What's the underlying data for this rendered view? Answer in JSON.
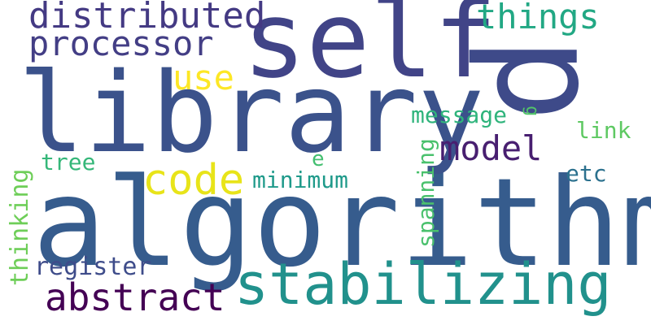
{
  "word_cloud": {
    "words": [
      {
        "text": "algorithm",
        "color": "#365C8D"
      },
      {
        "text": "library",
        "color": "#3B528B"
      },
      {
        "text": "self",
        "color": "#414487"
      },
      {
        "text": "stabilizing",
        "color": "#21918C"
      },
      {
        "text": "p",
        "color": "#3E4A89"
      },
      {
        "text": "distributed",
        "color": "#443A83"
      },
      {
        "text": "processor",
        "color": "#433E85"
      },
      {
        "text": "things",
        "color": "#22A884"
      },
      {
        "text": "code",
        "color": "#E8E419"
      },
      {
        "text": "abstract",
        "color": "#440154"
      },
      {
        "text": "model",
        "color": "#481F70"
      },
      {
        "text": "use",
        "color": "#FDE725"
      },
      {
        "text": "message",
        "color": "#2FB47C"
      },
      {
        "text": "link",
        "color": "#5EC962"
      },
      {
        "text": "etc",
        "color": "#2C718E"
      },
      {
        "text": "minimum",
        "color": "#1F9A8A"
      },
      {
        "text": "tree",
        "color": "#35B779"
      },
      {
        "text": "e",
        "color": "#44BF70"
      },
      {
        "text": "register",
        "color": "#3E4C8A"
      },
      {
        "text": "spanning",
        "color": "#4AC16D"
      },
      {
        "text": "thinking",
        "color": "#6ECE58"
      },
      {
        "text": "g",
        "color": "#52C569"
      }
    ]
  }
}
